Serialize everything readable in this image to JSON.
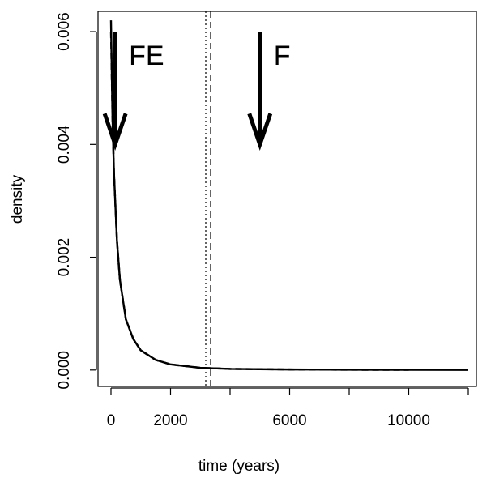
{
  "chart_data": {
    "type": "line",
    "xlabel": "time (years)",
    "ylabel": "density",
    "x": [
      0,
      50,
      100,
      200,
      300,
      500,
      750,
      1000,
      1500,
      2000,
      3000,
      4000,
      6000,
      8000,
      10000,
      12000
    ],
    "series": [
      {
        "color": "#000000",
        "dash": "solid",
        "values": [
          0.0062,
          0.0045,
          0.0035,
          0.0023,
          0.0016,
          0.0009,
          0.00055,
          0.00035,
          0.00018,
          0.0001,
          4e-05,
          2e-05,
          1e-05,
          5e-06,
          3e-06,
          2e-06
        ]
      },
      {
        "color": "#000000",
        "dash": "dashed",
        "values": [
          0.006,
          0.0045,
          0.0035,
          0.0023,
          0.0016,
          0.0009,
          0.00055,
          0.00035,
          0.00018,
          0.0001,
          4e-05,
          2e-05,
          1e-05,
          5e-06,
          3e-06,
          null
        ]
      }
    ],
    "vlines": [
      {
        "x": 3184,
        "dash": "dotted"
      },
      {
        "x": 3347,
        "dash": "dashed"
      }
    ],
    "arrows": [
      {
        "label": "FE",
        "x": 140,
        "y_start": 0.006,
        "y_end": 0.004
      },
      {
        "label": "F",
        "x": 5000,
        "y_start": 0.006,
        "y_end": 0.004
      }
    ],
    "xlim": [
      -435,
      12272
    ],
    "ylim": [
      -0.00029,
      0.00636
    ],
    "xticks": [
      0,
      2000,
      6000,
      10000
    ],
    "xticks_unlabeled": [
      4000,
      8000,
      12000
    ],
    "yticks": [
      0.0,
      0.002,
      0.004,
      0.006
    ],
    "ytick_labels": [
      "0.000",
      "0.002",
      "0.004",
      "0.006"
    ]
  }
}
